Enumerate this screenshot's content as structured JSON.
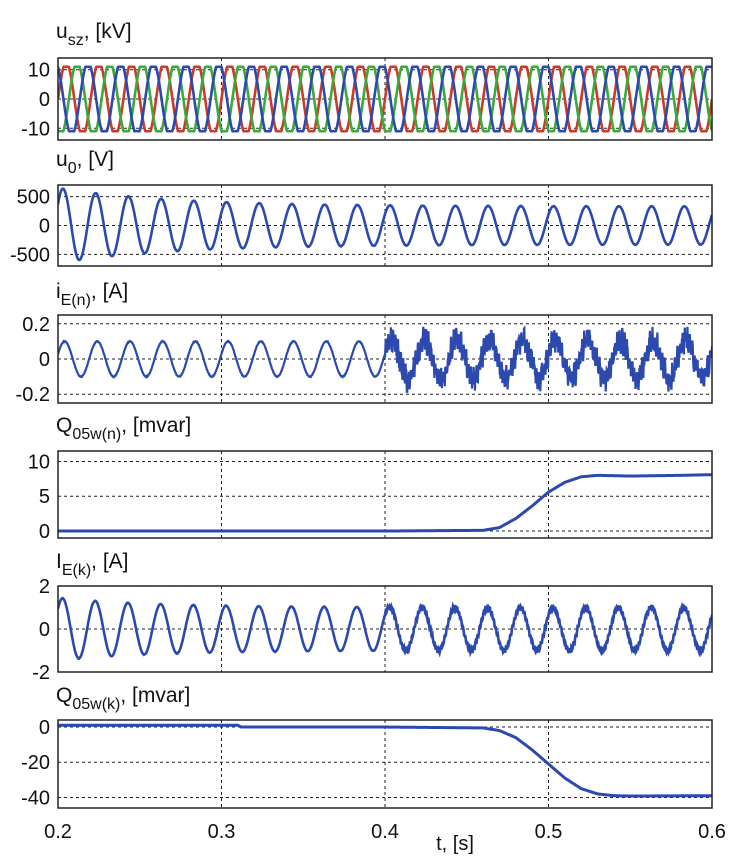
{
  "figure": {
    "x_axis": {
      "label": "t, [s]",
      "range": [
        0.2,
        0.6
      ],
      "ticks": [
        0.2,
        0.3,
        0.4,
        0.5,
        0.6
      ],
      "tick_labels": [
        "0.2",
        "0.3",
        "0.4",
        "0.5",
        "0.6"
      ]
    }
  },
  "chart_data": [
    {
      "type": "line",
      "title_main": "u",
      "title_sub": "sz",
      "title_unit": ", [kV]",
      "ylim": [
        -14,
        14
      ],
      "yticks": [
        -10,
        0,
        10
      ],
      "ytick_labels": [
        "-10",
        "0",
        "10"
      ],
      "grid": true,
      "waveform": "three-phase sine",
      "frequency_hz": 50,
      "amplitude": 12,
      "series": [
        {
          "color": "#cc3a2a"
        },
        {
          "color": "#3aaa3a"
        },
        {
          "color": "#2c49b0"
        }
      ]
    },
    {
      "type": "line",
      "title_main": "u",
      "title_sub": "0",
      "title_unit": ", [V]",
      "ylim": [
        -700,
        700
      ],
      "yticks": [
        -500,
        0,
        500
      ],
      "ytick_labels": [
        "-500",
        "0",
        "500"
      ],
      "grid": true,
      "waveform": "decaying sine",
      "frequency_hz": 50,
      "amplitude_start": 650,
      "amplitude_end": 330,
      "series": [
        {
          "color": "#2c49b0"
        }
      ]
    },
    {
      "type": "line",
      "title_main": "i",
      "title_sub": "E(n)",
      "title_unit": ", [A]",
      "ylim": [
        -0.25,
        0.25
      ],
      "yticks": [
        -0.2,
        0,
        0.2
      ],
      "ytick_labels": [
        "-0.2",
        "0",
        "0.2"
      ],
      "grid": true,
      "waveform": "sine, noisy after t=0.4",
      "frequency_hz": 50,
      "amplitude": 0.1,
      "disturbance_time": 0.4,
      "series": [
        {
          "color": "#2c49b0"
        }
      ]
    },
    {
      "type": "line",
      "title_main": "Q",
      "title_sub": "05w(n)",
      "title_unit": ", [mvar]",
      "ylim": [
        -1,
        11.5
      ],
      "yticks": [
        0,
        5,
        10
      ],
      "ytick_labels": [
        "0",
        "5",
        "10"
      ],
      "grid": true,
      "x": [
        0.2,
        0.4,
        0.46,
        0.47,
        0.48,
        0.49,
        0.5,
        0.51,
        0.52,
        0.53,
        0.55,
        0.58,
        0.6
      ],
      "y": [
        0,
        0,
        0.1,
        0.5,
        1.8,
        3.6,
        5.6,
        7.0,
        7.8,
        8.0,
        7.9,
        8.0,
        8.1
      ],
      "series": [
        {
          "color": "#2c49b0"
        }
      ]
    },
    {
      "type": "line",
      "title_main": "I",
      "title_sub": "E(k)",
      "title_unit": ", [A]",
      "ylim": [
        -2,
        2
      ],
      "yticks": [
        -2,
        0,
        2
      ],
      "ytick_labels": [
        "-2",
        "0",
        "2"
      ],
      "grid": true,
      "waveform": "decaying sine, slightly noisy after t=0.4",
      "frequency_hz": 50,
      "amplitude_start": 1.45,
      "amplitude_end": 1.0,
      "series": [
        {
          "color": "#2c49b0"
        }
      ]
    },
    {
      "type": "line",
      "title_main": "Q",
      "title_sub": "05w(k)",
      "title_unit": ", [mvar]",
      "ylim": [
        -46,
        4
      ],
      "yticks": [
        -40,
        -20,
        0
      ],
      "ytick_labels": [
        "-40",
        "-20",
        "0"
      ],
      "grid": true,
      "x": [
        0.2,
        0.31,
        0.312,
        0.4,
        0.46,
        0.47,
        0.48,
        0.49,
        0.5,
        0.51,
        0.52,
        0.53,
        0.54,
        0.55,
        0.6
      ],
      "y": [
        1,
        1,
        0,
        0,
        -0.5,
        -2,
        -6,
        -13,
        -21,
        -29,
        -35,
        -38,
        -39,
        -39.2,
        -39
      ],
      "series": [
        {
          "color": "#2c49b0"
        }
      ]
    }
  ]
}
